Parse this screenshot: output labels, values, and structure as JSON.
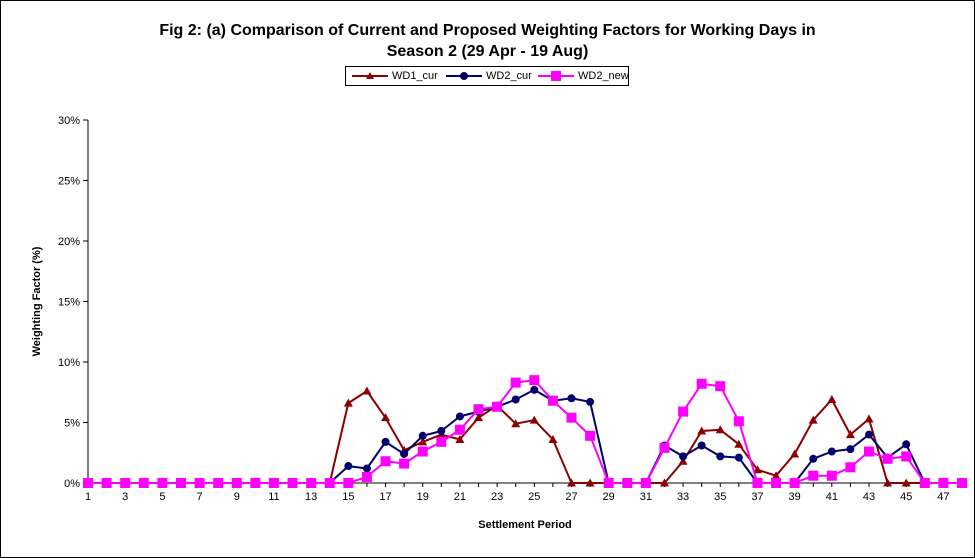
{
  "chart_data": {
    "type": "line",
    "title": "Fig 2: (a) Comparison of Current and Proposed Weighting Factors for Working Days in Season 2 (29 Apr - 19 Aug)",
    "title_lines": [
      "Fig 2: (a) Comparison of Current and Proposed Weighting Factors for Working Days in",
      "Season 2 (29 Apr - 19 Aug)"
    ],
    "xlabel": "Settlement Period",
    "ylabel": "Weighting Factor (%)",
    "ylim": [
      0,
      30
    ],
    "y_ticks": [
      "0%",
      "5%",
      "10%",
      "15%",
      "20%",
      "25%",
      "30%"
    ],
    "x_ticks": [
      "1",
      "3",
      "5",
      "7",
      "9",
      "11",
      "13",
      "15",
      "17",
      "19",
      "21",
      "23",
      "25",
      "27",
      "29",
      "31",
      "33",
      "35",
      "37",
      "39",
      "41",
      "43",
      "45",
      "47"
    ],
    "x": [
      1,
      2,
      3,
      4,
      5,
      6,
      7,
      8,
      9,
      10,
      11,
      12,
      13,
      14,
      15,
      16,
      17,
      18,
      19,
      20,
      21,
      22,
      23,
      24,
      25,
      26,
      27,
      28,
      29,
      30,
      31,
      32,
      33,
      34,
      35,
      36,
      37,
      38,
      39,
      40,
      41,
      42,
      43,
      44,
      45,
      46,
      47,
      48
    ],
    "grid": false,
    "legend_position": "top",
    "series": [
      {
        "name": "WD1_cur",
        "color": "#8b0000",
        "marker": "triangle",
        "values": [
          0,
          0,
          0,
          0,
          0,
          0,
          0,
          0,
          0,
          0,
          0,
          0,
          0,
          0,
          6.6,
          7.6,
          5.4,
          2.7,
          3.4,
          4.0,
          3.6,
          5.4,
          6.4,
          4.9,
          5.2,
          3.6,
          0,
          0,
          0,
          0,
          0,
          0,
          1.8,
          4.3,
          4.4,
          3.2,
          1.1,
          0.6,
          2.4,
          5.2,
          6.9,
          4.0,
          5.3,
          0,
          0,
          0,
          0,
          0
        ]
      },
      {
        "name": "WD2_cur",
        "color": "#00006b",
        "marker": "circle",
        "values": [
          0,
          0,
          0,
          0,
          0,
          0,
          0,
          0,
          0,
          0,
          0,
          0,
          0,
          0,
          1.4,
          1.2,
          3.4,
          2.4,
          3.9,
          4.3,
          5.5,
          5.9,
          6.3,
          6.9,
          7.7,
          6.8,
          7.0,
          6.7,
          0,
          0,
          0,
          3.1,
          2.2,
          3.1,
          2.2,
          2.1,
          0,
          0,
          0,
          2.0,
          2.6,
          2.8,
          4.0,
          2.1,
          3.2,
          0,
          0,
          0
        ]
      },
      {
        "name": "WD2_new",
        "color": "#ff00ff",
        "marker": "square",
        "values": [
          0,
          0,
          0,
          0,
          0,
          0,
          0,
          0,
          0,
          0,
          0,
          0,
          0,
          0,
          0,
          0.5,
          1.8,
          1.6,
          2.6,
          3.4,
          4.4,
          6.1,
          6.3,
          8.3,
          8.5,
          6.8,
          5.4,
          3.9,
          0,
          0,
          0,
          2.9,
          5.9,
          8.2,
          8.0,
          5.1,
          0,
          0,
          0,
          0.6,
          0.6,
          1.3,
          2.6,
          2.0,
          2.2,
          0,
          0,
          0
        ]
      }
    ]
  }
}
